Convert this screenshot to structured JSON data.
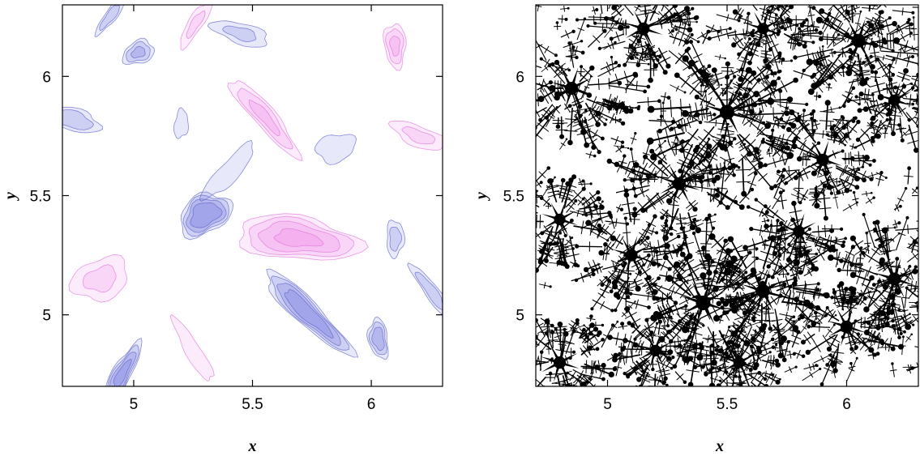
{
  "chart_data": [
    {
      "type": "heatmap",
      "panel": "left",
      "title": "",
      "xlabel": "x",
      "ylabel": "y",
      "xlim": [
        4.7,
        6.3
      ],
      "ylim": [
        4.7,
        6.3
      ],
      "xticks": [
        {
          "value": 5,
          "label": "5"
        },
        {
          "value": 5.5,
          "label": "5.5"
        },
        {
          "value": 6,
          "label": "6"
        }
      ],
      "yticks": [
        {
          "value": 5,
          "label": "5"
        },
        {
          "value": 5.5,
          "label": "5.5"
        },
        {
          "value": 6,
          "label": "6"
        }
      ],
      "colors": {
        "negative": "#7a7ee0",
        "positive": "#f090e8",
        "neutral": "#ffffff",
        "line_negative": "#5a5fc8",
        "line_positive": "#e070d8"
      },
      "field_features": [
        {
          "x": 5.3,
          "y": 5.42,
          "value": -1.0,
          "radius": 0.11
        },
        {
          "x": 5.69,
          "y": 5.32,
          "value": 0.8,
          "radius": 0.18
        },
        {
          "x": 5.73,
          "y": 5.01,
          "value": -0.95,
          "radius": 0.13
        },
        {
          "x": 6.03,
          "y": 4.9,
          "value": -0.7,
          "radius": 0.07
        },
        {
          "x": 4.95,
          "y": 4.75,
          "value": -0.85,
          "radius": 0.09
        },
        {
          "x": 5.02,
          "y": 6.1,
          "value": -0.6,
          "radius": 0.07
        },
        {
          "x": 4.73,
          "y": 5.82,
          "value": -0.55,
          "radius": 0.1
        },
        {
          "x": 5.55,
          "y": 5.83,
          "value": 0.6,
          "radius": 0.12
        },
        {
          "x": 6.1,
          "y": 6.13,
          "value": 0.6,
          "radius": 0.08
        },
        {
          "x": 5.26,
          "y": 6.22,
          "value": 0.4,
          "radius": 0.08
        },
        {
          "x": 4.86,
          "y": 5.15,
          "value": 0.4,
          "radius": 0.14
        },
        {
          "x": 5.45,
          "y": 6.18,
          "value": -0.4,
          "radius": 0.1
        },
        {
          "x": 6.25,
          "y": 5.1,
          "value": -0.5,
          "radius": 0.08
        },
        {
          "x": 6.1,
          "y": 5.32,
          "value": -0.45,
          "radius": 0.07
        },
        {
          "x": 4.9,
          "y": 6.25,
          "value": -0.5,
          "radius": 0.06
        },
        {
          "x": 5.85,
          "y": 5.7,
          "value": -0.35,
          "radius": 0.1
        },
        {
          "x": 6.2,
          "y": 5.75,
          "value": 0.4,
          "radius": 0.1
        },
        {
          "x": 5.25,
          "y": 4.85,
          "value": 0.35,
          "radius": 0.1
        },
        {
          "x": 5.2,
          "y": 5.8,
          "value": -0.35,
          "radius": 0.06
        },
        {
          "x": 5.4,
          "y": 5.6,
          "value": -0.2,
          "radius": 0.15
        }
      ]
    },
    {
      "type": "scatter",
      "panel": "right",
      "title": "",
      "xlabel": "x",
      "ylabel": "y",
      "xlim": [
        4.7,
        6.3
      ],
      "ylim": [
        4.7,
        6.3
      ],
      "xticks": [
        {
          "value": 5,
          "label": "5"
        },
        {
          "value": 5.5,
          "label": "5.5"
        },
        {
          "value": 6,
          "label": "6"
        }
      ],
      "yticks": [
        {
          "value": 5,
          "label": "5"
        },
        {
          "value": 5.5,
          "label": "5.5"
        },
        {
          "value": 6,
          "label": "6"
        }
      ],
      "colors": {
        "glyph": "#000000",
        "background": "#ffffff"
      },
      "clusters": [
        {
          "x": 5.5,
          "y": 5.85,
          "strength": 1.0
        },
        {
          "x": 5.4,
          "y": 5.05,
          "strength": 1.0
        },
        {
          "x": 5.65,
          "y": 5.1,
          "strength": 0.9
        },
        {
          "x": 5.3,
          "y": 5.55,
          "strength": 0.8
        },
        {
          "x": 4.85,
          "y": 5.95,
          "strength": 0.8
        },
        {
          "x": 6.2,
          "y": 5.15,
          "strength": 0.8
        },
        {
          "x": 6.05,
          "y": 6.15,
          "strength": 0.9
        },
        {
          "x": 5.9,
          "y": 5.65,
          "strength": 0.7
        },
        {
          "x": 5.15,
          "y": 6.2,
          "strength": 0.7
        },
        {
          "x": 6.0,
          "y": 4.95,
          "strength": 0.7
        },
        {
          "x": 4.8,
          "y": 4.8,
          "strength": 0.7
        },
        {
          "x": 5.1,
          "y": 5.25,
          "strength": 0.7
        },
        {
          "x": 5.8,
          "y": 5.35,
          "strength": 0.6
        },
        {
          "x": 4.8,
          "y": 5.4,
          "strength": 0.6
        },
        {
          "x": 5.65,
          "y": 6.2,
          "strength": 0.6
        },
        {
          "x": 6.2,
          "y": 5.9,
          "strength": 0.6
        },
        {
          "x": 5.2,
          "y": 4.85,
          "strength": 0.6
        },
        {
          "x": 5.55,
          "y": 4.8,
          "strength": 0.6
        }
      ]
    }
  ]
}
